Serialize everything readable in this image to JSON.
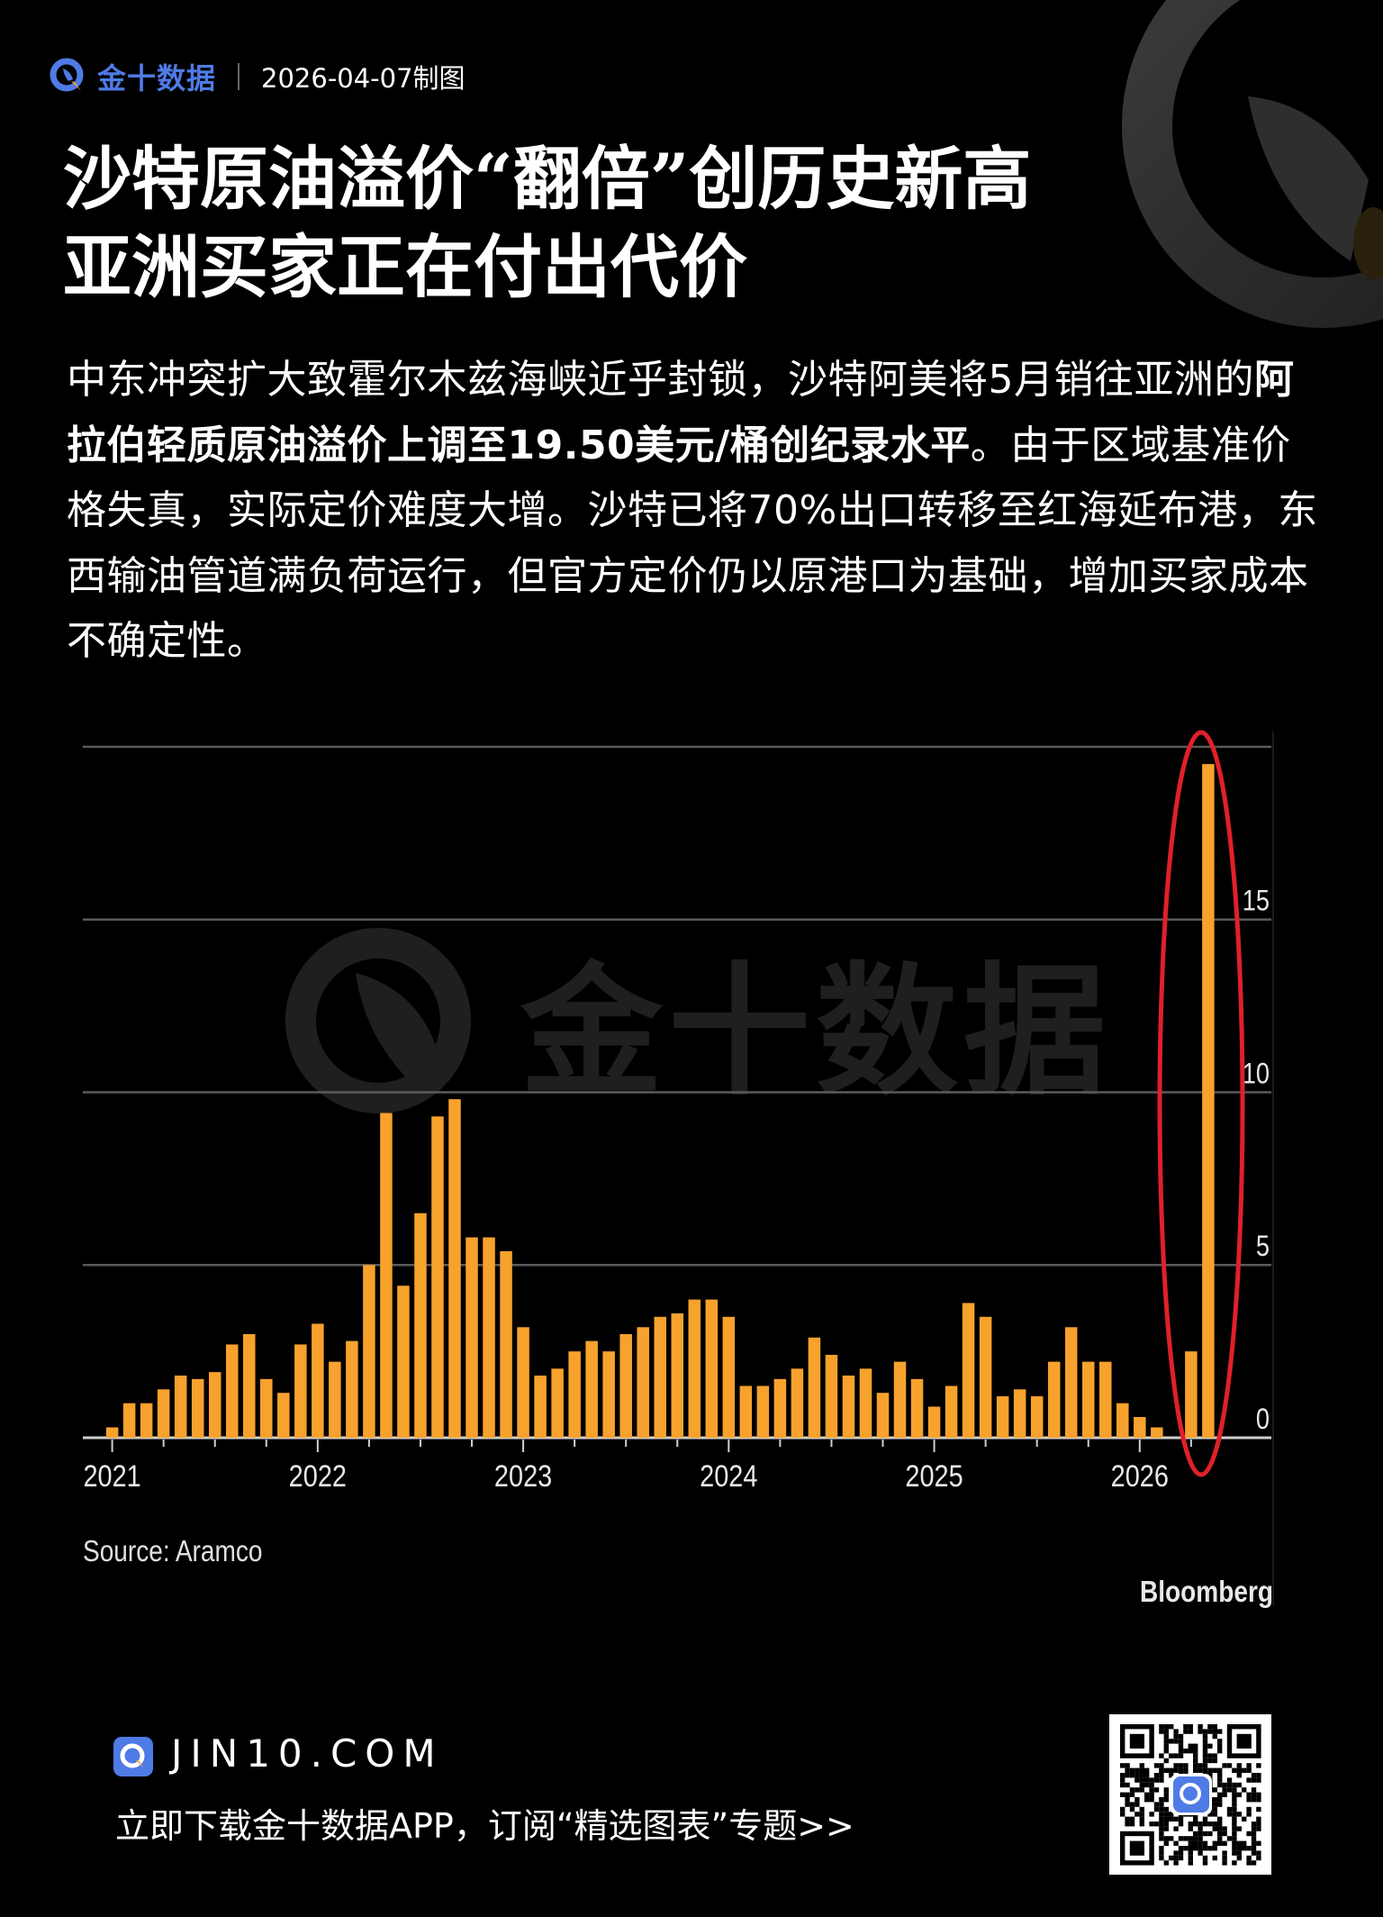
{
  "header": {
    "brand": "金十数据",
    "date_text": "2026-04-07制图"
  },
  "title": {
    "line1": "沙特原油溢价“翻倍”创历史新高",
    "line2": "亚洲买家正在付出代价"
  },
  "paragraph": {
    "pre": "中东冲突扩大致霍尔木兹海峡近乎封锁，沙特阿美将5月销往亚洲的",
    "bold": "阿拉伯轻质原油溢价上调至19.50美元/桶创纪录水平",
    "post": "。由于区域基准价格失真，实际定价难度大增。沙特已将70%出口转移至红海延布港，东西输油管道满负荷运行，但官方定价仍以原港口为基础，增加买家成本不确定性。"
  },
  "chart_data": {
    "type": "bar",
    "title": "",
    "xlabel": "",
    "ylabel": "",
    "ylim": [
      0,
      20
    ],
    "yticks": [
      0,
      5,
      10,
      15
    ],
    "grid": true,
    "y_axis_side": "right",
    "bar_color": "#f7a22d",
    "highlight_color": "#e0202a",
    "x_tick_labels": [
      "2021",
      "2022",
      "2023",
      "2024",
      "2025",
      "2026"
    ],
    "start_month": "2021-01",
    "months": [
      "2021-01",
      "2021-02",
      "2021-03",
      "2021-04",
      "2021-05",
      "2021-06",
      "2021-07",
      "2021-08",
      "2021-09",
      "2021-10",
      "2021-11",
      "2021-12",
      "2022-01",
      "2022-02",
      "2022-03",
      "2022-04",
      "2022-05",
      "2022-06",
      "2022-07",
      "2022-08",
      "2022-09",
      "2022-10",
      "2022-11",
      "2022-12",
      "2023-01",
      "2023-02",
      "2023-03",
      "2023-04",
      "2023-05",
      "2023-06",
      "2023-07",
      "2023-08",
      "2023-09",
      "2023-10",
      "2023-11",
      "2023-12",
      "2024-01",
      "2024-02",
      "2024-03",
      "2024-04",
      "2024-05",
      "2024-06",
      "2024-07",
      "2024-08",
      "2024-09",
      "2024-10",
      "2024-11",
      "2024-12",
      "2025-01",
      "2025-02",
      "2025-03",
      "2025-04",
      "2025-05",
      "2025-06",
      "2025-07",
      "2025-08",
      "2025-09",
      "2025-10",
      "2025-11",
      "2025-12",
      "2026-01",
      "2026-02",
      "2026-03",
      "2026-04",
      "2026-05"
    ],
    "values": [
      0.3,
      1.0,
      1.0,
      1.4,
      1.8,
      1.7,
      1.9,
      2.7,
      3.0,
      1.7,
      1.3,
      2.7,
      3.3,
      2.2,
      2.8,
      5.0,
      9.4,
      4.4,
      6.5,
      9.3,
      9.8,
      5.8,
      5.8,
      5.4,
      3.2,
      1.8,
      2.0,
      2.5,
      2.8,
      2.5,
      3.0,
      3.2,
      3.5,
      3.6,
      4.0,
      4.0,
      3.5,
      1.5,
      1.5,
      1.7,
      2.0,
      2.9,
      2.4,
      1.8,
      2.0,
      1.3,
      2.2,
      1.7,
      0.9,
      1.5,
      3.9,
      3.5,
      1.2,
      1.4,
      1.2,
      2.2,
      3.2,
      2.2,
      2.2,
      1.0,
      0.6,
      0.3,
      0,
      2.5,
      19.5
    ],
    "highlighted_months": [
      "2026-04",
      "2026-05"
    ],
    "source": "Source: Aramco",
    "credit": "Bloomberg",
    "watermark": "金十数据"
  },
  "footer": {
    "site": "JIN10.COM",
    "promo": "立即下载金十数据APP，订阅“精选图表”专题>>"
  }
}
